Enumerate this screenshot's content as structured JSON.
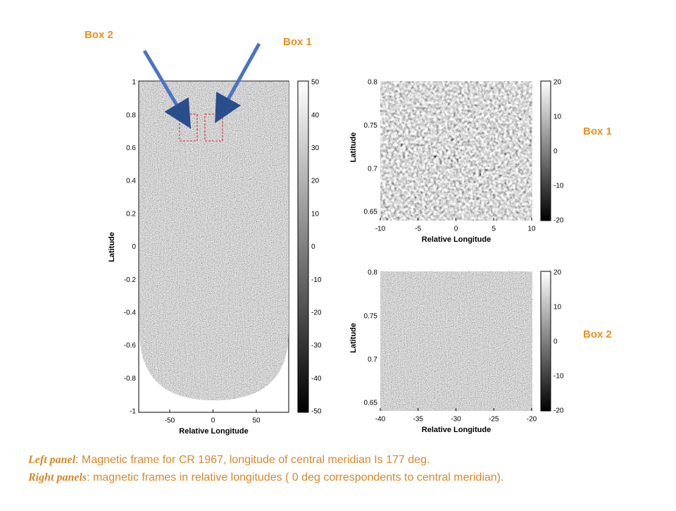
{
  "callouts": {
    "top_box2": "Box 2",
    "top_box1": "Box 1",
    "right_box1": "Box 1",
    "right_box2": "Box 2"
  },
  "left_panel": {
    "xlabel": "Relative Longitude",
    "ylabel": "Latitude",
    "xticks": [
      "-50",
      "0",
      "50"
    ],
    "yticks": [
      "1",
      "0.8",
      "0.6",
      "0.4",
      "0.2",
      "0",
      "-0.2",
      "-0.4",
      "-0.6",
      "-0.8",
      "-1"
    ],
    "colorbar_ticks": [
      "50",
      "40",
      "30",
      "20",
      "10",
      "0",
      "-10",
      "-20",
      "-30",
      "-40",
      "-50"
    ]
  },
  "right_panels": [
    {
      "xlabel": "Relative Longitude",
      "ylabel": "Latitude",
      "xticks": [
        "-10",
        "-5",
        "0",
        "5",
        "10"
      ],
      "yticks": [
        "0.8",
        "0.75",
        "0.7",
        "0.65"
      ],
      "colorbar_ticks": [
        "20",
        "10",
        "0",
        "-10",
        "-20"
      ]
    },
    {
      "xlabel": "Relative Longitude",
      "ylabel": "Latitude",
      "xticks": [
        "-40",
        "-35",
        "-30",
        "-25",
        "-20"
      ],
      "yticks": [
        "0.8",
        "0.75",
        "0.7",
        "0.65"
      ],
      "colorbar_ticks": [
        "20",
        "10",
        "0",
        "-10",
        "-20"
      ]
    }
  ],
  "caption": {
    "line1_label": "Left panel",
    "line1_text": ": Magnetic frame for CR 1967, longitude of central meridian Is 177 deg.",
    "line2_label": "Right panels",
    "line2_text": ": magnetic frames in relative longitudes  ( 0 deg correspondents  to central meridian)."
  }
}
